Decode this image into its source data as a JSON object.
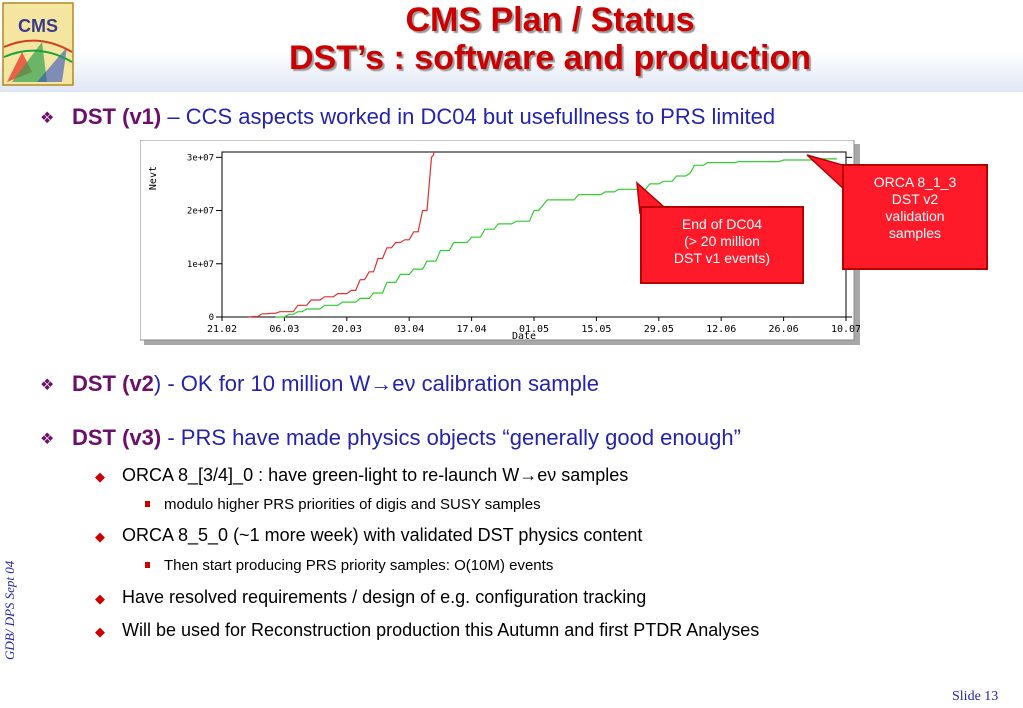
{
  "slide": {
    "title_line1": "CMS Plan / Status",
    "title_line2": "DST’s : software and production",
    "logo_text": "CMS",
    "sidebar_text": "GDB/ DPS Sept 04",
    "slide_number": "Slide 13"
  },
  "bullets": {
    "b1": {
      "bold": "DST (v1)",
      "rest": " – CCS aspects worked in DC04 but usefullness to PRS limited"
    },
    "b2": {
      "bold": "DST (v2",
      "rest": ") - OK for 10 million W→eν calibration sample"
    },
    "b3": {
      "bold": "DST (v3)",
      "rest": " - PRS have made physics objects “generally good enough”",
      "sub": [
        {
          "text": "ORCA 8_[3/4]_0  :  have green-light to re-launch W→eν samples",
          "sub": [
            "modulo higher PRS priorities of digis and SUSY samples"
          ]
        },
        {
          "text": "ORCA 8_5_0 (~1 more week) with validated DST physics content",
          "sub": [
            "Then start producing PRS priority samples:  O(10M) events"
          ]
        },
        {
          "text": "Have resolved requirements / design of e.g. configuration tracking",
          "sub": []
        },
        {
          "text": "Will be used for Reconstruction production this Autumn and first PTDR Analyses",
          "sub": []
        }
      ]
    }
  },
  "callouts": {
    "end_dc04": [
      "End of DC04",
      "(> 20 million",
      "DST v1 events)"
    ],
    "orca": [
      "ORCA 8_1_3",
      "DST v2",
      "validation",
      "samples"
    ]
  },
  "chart_data": {
    "type": "line",
    "xlabel": "Date",
    "ylabel": "Nevt",
    "x_ticks": [
      "21.02",
      "06.03",
      "20.03",
      "03.04",
      "17.04",
      "01.05",
      "15.05",
      "29.05",
      "12.06",
      "26.06",
      "10.07"
    ],
    "y_ticks": [
      "0",
      "1e+07",
      "2e+07",
      "3e+07"
    ],
    "y_tick_values": [
      0,
      10000000,
      20000000,
      30000000
    ],
    "xlim_days": [
      0,
      140
    ],
    "ylim": [
      0,
      31000000
    ],
    "grid": false,
    "series": [
      {
        "color": "#e03030",
        "points": [
          [
            6,
            0
          ],
          [
            7,
            100000
          ],
          [
            8,
            100000
          ],
          [
            9,
            600000
          ],
          [
            10,
            600000
          ],
          [
            11,
            700000
          ],
          [
            12,
            700000
          ],
          [
            13,
            1000000
          ],
          [
            16,
            1000000
          ],
          [
            17,
            2200000
          ],
          [
            19,
            2200000
          ],
          [
            20,
            3200000
          ],
          [
            22,
            3200000
          ],
          [
            23,
            3800000
          ],
          [
            25,
            3800000
          ],
          [
            26,
            4400000
          ],
          [
            28,
            4400000
          ],
          [
            29,
            5000000
          ],
          [
            30,
            5000000
          ],
          [
            31,
            7000000
          ],
          [
            32,
            7000000
          ],
          [
            33,
            8500000
          ],
          [
            34,
            8500000
          ],
          [
            35,
            11000000
          ],
          [
            36,
            11000000
          ],
          [
            37,
            13000000
          ],
          [
            38,
            13000000
          ],
          [
            39,
            14000000
          ],
          [
            40,
            14000000
          ],
          [
            41,
            14500000
          ],
          [
            42,
            14500000
          ],
          [
            43,
            16000000
          ],
          [
            44,
            16000000
          ],
          [
            45,
            20000000
          ],
          [
            46,
            20000000
          ],
          [
            47,
            30000000
          ],
          [
            47.5,
            30500000
          ],
          [
            47.5,
            31000000
          ]
        ]
      },
      {
        "color": "#33cc33",
        "points": [
          [
            12,
            0
          ],
          [
            14,
            0
          ],
          [
            15,
            500000
          ],
          [
            16,
            500000
          ],
          [
            17,
            1000000
          ],
          [
            18,
            1000000
          ],
          [
            19,
            1500000
          ],
          [
            22,
            1500000
          ],
          [
            23,
            2200000
          ],
          [
            26,
            2200000
          ],
          [
            27,
            2800000
          ],
          [
            30,
            2800000
          ],
          [
            31,
            3500000
          ],
          [
            33,
            3500000
          ],
          [
            34,
            4500000
          ],
          [
            36,
            4500000
          ],
          [
            37,
            6500000
          ],
          [
            39,
            6500000
          ],
          [
            40,
            8000000
          ],
          [
            42,
            8000000
          ],
          [
            43,
            9000000
          ],
          [
            45,
            9000000
          ],
          [
            46,
            10500000
          ],
          [
            48,
            10500000
          ],
          [
            49,
            12500000
          ],
          [
            51,
            12500000
          ],
          [
            52,
            14000000
          ],
          [
            55,
            14000000
          ],
          [
            56,
            15000000
          ],
          [
            58,
            15000000
          ],
          [
            59,
            16500000
          ],
          [
            61,
            16500000
          ],
          [
            62,
            17500000
          ],
          [
            65,
            17500000
          ],
          [
            66,
            18000000
          ],
          [
            69,
            18000000
          ],
          [
            70,
            20000000
          ],
          [
            71,
            20000000
          ],
          [
            72,
            21000000
          ],
          [
            73,
            22000000
          ],
          [
            74,
            22000000
          ],
          [
            79,
            22000000
          ],
          [
            80,
            23000000
          ],
          [
            85,
            23000000
          ],
          [
            86,
            23500000
          ],
          [
            88,
            23500000
          ],
          [
            89,
            24000000
          ],
          [
            93,
            24000000
          ],
          [
            95,
            24000000
          ],
          [
            96,
            25000000
          ],
          [
            98,
            25000000
          ],
          [
            99,
            25500000
          ],
          [
            101,
            25500000
          ],
          [
            102,
            26500000
          ],
          [
            104,
            26500000
          ],
          [
            105,
            27000000
          ],
          [
            106,
            28500000
          ],
          [
            108,
            28500000
          ],
          [
            109,
            29000000
          ],
          [
            115,
            29000000
          ],
          [
            116,
            29200000
          ],
          [
            125,
            29200000
          ],
          [
            126,
            29500000
          ],
          [
            133,
            29500000
          ],
          [
            134,
            29700000
          ],
          [
            138,
            29700000
          ]
        ]
      }
    ]
  }
}
